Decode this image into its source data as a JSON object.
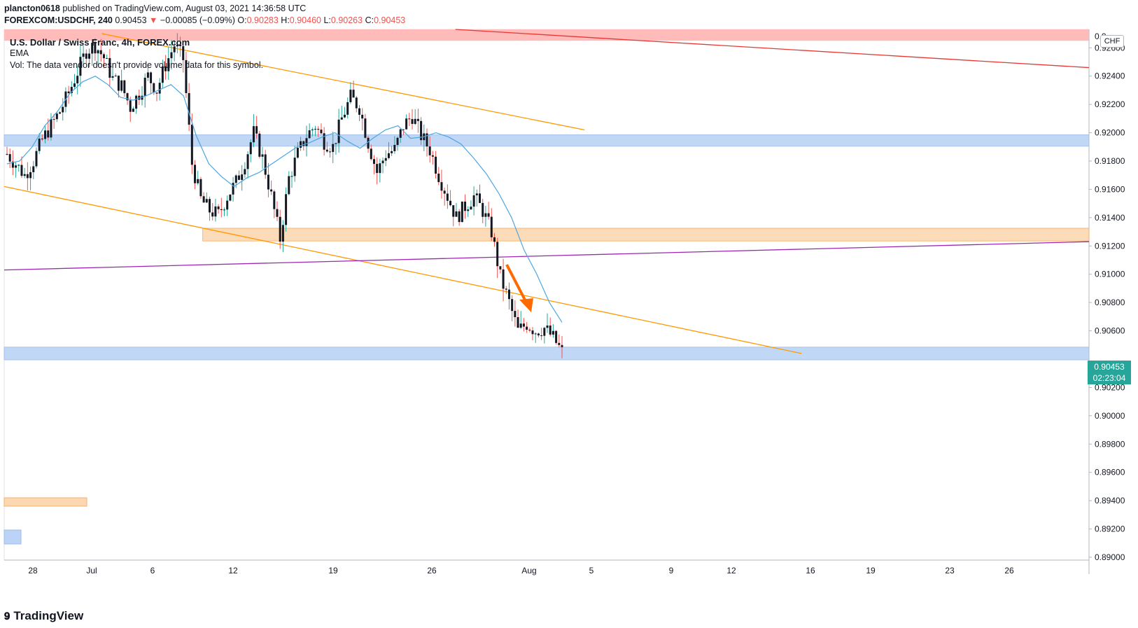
{
  "header": {
    "publisher": "plancton0618",
    "published_text": "published on TradingView.com, August 03, 2021 14:36:58 UTC",
    "symbol": "FOREXCOM:USDCHF, 240",
    "last": "0.90453",
    "change_arrow": "▼",
    "change": "−0.00085 (−0.09%)",
    "open_label": "O:",
    "open": "0.90283",
    "high_label": "H:",
    "high": "0.90460",
    "low_label": "L:",
    "low": "0.90263",
    "close_label": "C:",
    "close": "0.90453"
  },
  "legend": {
    "title": "U.S. Dollar / Swiss Franc, 4h, FOREX.com",
    "ema": "EMA",
    "vol": "Vol: The data vendor doesn't provide volume data for this symbol."
  },
  "price_axis": {
    "currency": "CHF",
    "last_price": "0.90453",
    "countdown": "02:23:04"
  },
  "branding": {
    "logo_text": "TradingView",
    "logo_icon": "tradingview-logo-icon"
  },
  "colors": {
    "up": "#26a69a",
    "down": "#ef5350",
    "candle_body": "#131722",
    "ema": "#4da6e0",
    "channel": "#ff9800",
    "red_line": "#e53935",
    "purple_line": "#9c27b0",
    "zone_blue": "#bbd3f6",
    "zone_orange": "#fcd8b2",
    "zone_red": "#ffb3b3",
    "arrow": "#ff6a00"
  },
  "chart_data": {
    "type": "candlestick",
    "symbol": "USDCHF",
    "timeframe": "4h",
    "ylim": [
      0.8898,
      0.9273
    ],
    "y_ticks": [
      "0.92600",
      "0.92400",
      "0.92200",
      "0.92000",
      "0.91800",
      "0.91600",
      "0.91400",
      "0.91200",
      "0.91000",
      "0.90800",
      "0.90600",
      "0.90200",
      "0.90000",
      "0.89800",
      "0.89600",
      "0.89400",
      "0.89200",
      "0.89000"
    ],
    "x_ticks": [
      "28",
      "Jul",
      "6",
      "12",
      "19",
      "26",
      "Aug",
      "5",
      "9",
      "12",
      "16",
      "19",
      "23",
      "26"
    ],
    "close_path": [
      0.9185,
      0.9178,
      0.917,
      0.918,
      0.9195,
      0.9205,
      0.9215,
      0.9228,
      0.9243,
      0.9258,
      0.9262,
      0.9253,
      0.9238,
      0.9233,
      0.9218,
      0.9228,
      0.924,
      0.923,
      0.9248,
      0.9262,
      0.9252,
      0.9178,
      0.9153,
      0.9145,
      0.9142,
      0.9155,
      0.9165,
      0.918,
      0.92,
      0.9182,
      0.9155,
      0.9125,
      0.9168,
      0.9185,
      0.9198,
      0.9205,
      0.9194,
      0.919,
      0.921,
      0.9225,
      0.9218,
      0.9193,
      0.9172,
      0.9185,
      0.9188,
      0.9205,
      0.9212,
      0.9198,
      0.9188,
      0.917,
      0.9155,
      0.914,
      0.9148,
      0.9155,
      0.9145,
      0.913,
      0.9098,
      0.908,
      0.906,
      0.9065,
      0.906,
      0.9062,
      0.9055,
      0.9045
    ],
    "ema_path": [
      0.9178,
      0.918,
      0.919,
      0.9205,
      0.9215,
      0.9228,
      0.9236,
      0.924,
      0.9234,
      0.9225,
      0.9223,
      0.9226,
      0.923,
      0.9234,
      0.9226,
      0.9198,
      0.9178,
      0.9169,
      0.9162,
      0.9168,
      0.9172,
      0.9178,
      0.9184,
      0.919,
      0.9193,
      0.9197,
      0.92,
      0.9194,
      0.9189,
      0.9196,
      0.9202,
      0.9205,
      0.9196,
      0.9197,
      0.92,
      0.9197,
      0.9192,
      0.9182,
      0.9171,
      0.9157,
      0.914,
      0.9117,
      0.91,
      0.908,
      0.9066
    ],
    "zones": [
      {
        "name": "red-resistance-zone",
        "y_top": 0.9273,
        "y_bottom": 0.9265,
        "x_start": 0.0,
        "x_end": 1.0
      },
      {
        "name": "blue-zone-upper",
        "y_top": 0.91985,
        "y_bottom": 0.91905,
        "x_start": 0.0,
        "x_end": 1.0
      },
      {
        "name": "orange-zone",
        "y_top": 0.91325,
        "y_bottom": 0.91235,
        "x_start": 0.183,
        "x_end": 1.0
      },
      {
        "name": "blue-zone-lower",
        "y_top": 0.90485,
        "y_bottom": 0.90395,
        "x_start": 0.0,
        "x_end": 1.0
      }
    ],
    "trendlines": [
      {
        "name": "channel-top",
        "x1": 0.09,
        "y1": 0.927,
        "x2": 0.535,
        "y2": 0.9202
      },
      {
        "name": "channel-bottom",
        "x1": 0.0,
        "y1": 0.9162,
        "x2": 0.735,
        "y2": 0.9044
      },
      {
        "name": "red-trendline",
        "x1": 0.416,
        "y1": 0.9273,
        "x2": 1.0,
        "y2": 0.9246
      },
      {
        "name": "purple-trendline",
        "x1": 0.0,
        "y1": 0.9103,
        "x2": 1.0,
        "y2": 0.9123
      }
    ]
  }
}
